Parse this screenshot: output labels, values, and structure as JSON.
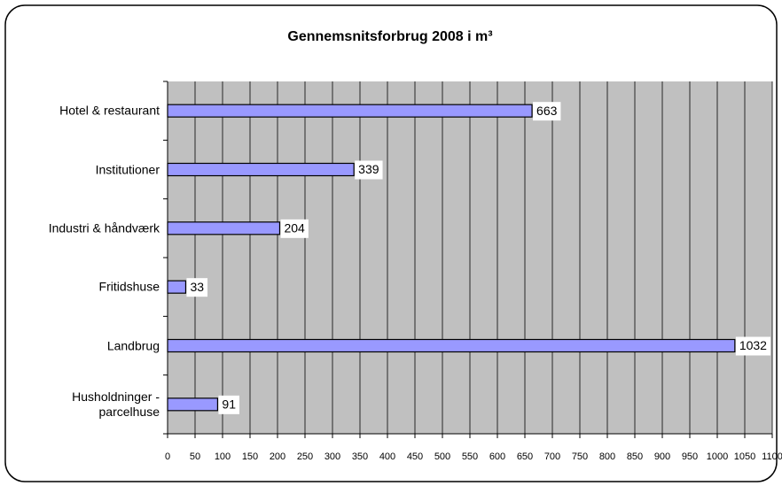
{
  "chart_data": {
    "type": "barh",
    "title": "Gennemsnitsforbrug 2008 i m³",
    "categories": [
      "Hotel & restaurant",
      "Institutioner",
      "Industri & håndværk",
      "Fritidshuse",
      "Landbrug",
      "Husholdninger -\nparcelhuse"
    ],
    "values": [
      663,
      339,
      204,
      33,
      1032,
      91
    ],
    "color": "#9999ff",
    "xlim": [
      0,
      1100
    ],
    "xticks": [
      0,
      50,
      100,
      150,
      200,
      250,
      300,
      350,
      400,
      450,
      500,
      550,
      600,
      650,
      700,
      750,
      800,
      850,
      900,
      950,
      1000,
      1050,
      1100
    ],
    "grid": true
  }
}
